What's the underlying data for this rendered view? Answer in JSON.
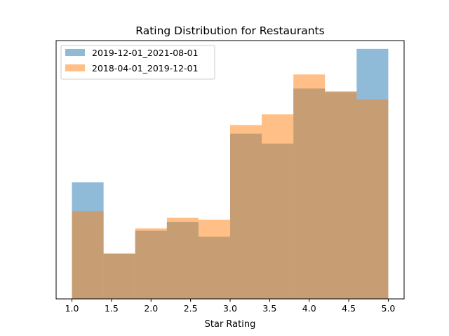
{
  "chart_data": {
    "type": "bar",
    "title": "Rating Distribution for Restaurants",
    "xlabel": "Star Rating",
    "ylabel": "",
    "xlim": [
      0.8,
      5.2
    ],
    "ylim": [
      0,
      1.03
    ],
    "y_ticks_visible": false,
    "x_ticks": [
      1.0,
      1.5,
      2.0,
      2.5,
      3.0,
      3.5,
      4.0,
      4.5,
      5.0
    ],
    "x_tick_labels": [
      "1.0",
      "1.5",
      "2.0",
      "2.5",
      "3.0",
      "3.5",
      "4.0",
      "4.5",
      "5.0"
    ],
    "bin_edges": [
      1.0,
      1.4,
      1.8,
      2.2,
      2.6,
      3.0,
      3.4,
      3.8,
      4.2,
      4.6,
      5.0
    ],
    "legend_position": "top-left",
    "grid": false,
    "overlap_color": "#c69c73",
    "series": [
      {
        "name": "2019-12-01_2021-08-01",
        "color": "#1f77b4",
        "opacity": 0.5,
        "values": [
          0.465,
          0.179,
          0.272,
          0.307,
          0.248,
          0.659,
          0.619,
          0.839,
          0.825,
          0.997
        ]
      },
      {
        "name": "2018-04-01_2019-12-01",
        "color": "#ff7f0e",
        "opacity": 0.5,
        "values": [
          0.35,
          0.182,
          0.281,
          0.324,
          0.316,
          0.693,
          0.736,
          0.895,
          0.828,
          0.795
        ]
      }
    ]
  }
}
